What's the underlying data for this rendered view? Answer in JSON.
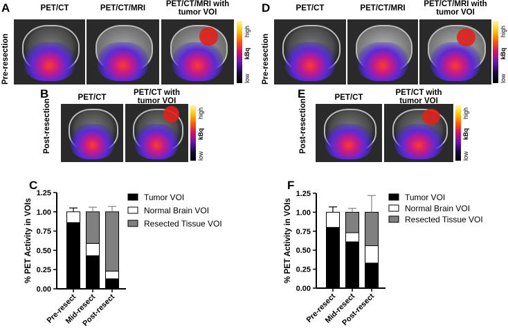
{
  "panels": {
    "A": {
      "letter": "A",
      "row_label": "Pre-resection",
      "titles": [
        "PET/CT",
        "PET/CT/MRI",
        "PET/CT/MRI with tumor VOI"
      ]
    },
    "B": {
      "letter": "B",
      "row_label": "Post-resection",
      "titles": [
        "PET/CT",
        "PET/CT with tumor VOI"
      ]
    },
    "D": {
      "letter": "D",
      "row_label": "Pre-resection",
      "titles": [
        "PET/CT",
        "PET/CT/MRI",
        "PET/CT/MRI with tumor VOI"
      ]
    },
    "E": {
      "letter": "E",
      "row_label": "Post-resection",
      "titles": [
        "PET/CT",
        "PET/CT with tumor VOI"
      ]
    }
  },
  "colorbar": {
    "high": "high",
    "unit": "kBq",
    "low": "low"
  },
  "chart_data": [
    {
      "panel": "C",
      "type": "bar",
      "stacked": true,
      "title": "",
      "ylabel": "% PET Activity in VOIs",
      "xlabel": "",
      "ylim": [
        0,
        1.25
      ],
      "yticks": [
        "0.00",
        "0.25",
        "0.50",
        "0.75",
        "1.00",
        "1.25"
      ],
      "categories": [
        "Pre-resect",
        "Mid-resect",
        "Post-resect"
      ],
      "series": [
        {
          "name": "Tumor VOI",
          "color": "#000000",
          "values": [
            0.86,
            0.43,
            0.13
          ],
          "errors": [
            0.05,
            0.06,
            0.04
          ]
        },
        {
          "name": "Normal Brain VOI",
          "color": "#ffffff",
          "values": [
            0.14,
            0.16,
            0.1
          ],
          "errors": [
            0.05,
            0.04,
            0.02
          ]
        },
        {
          "name": "Resected Tissue VOI",
          "color": "#808080",
          "values": [
            0,
            0.41,
            0.77
          ],
          "errors": [
            0,
            0.06,
            0.07
          ]
        }
      ],
      "legend": "top-right"
    },
    {
      "panel": "F",
      "type": "bar",
      "stacked": true,
      "title": "",
      "ylabel": "% PET Activity in VOIs",
      "xlabel": "",
      "ylim": [
        0,
        1.25
      ],
      "yticks": [
        "0.00",
        "0.25",
        "0.50",
        "0.75",
        "1.00",
        "1.25"
      ],
      "categories": [
        "Pre-resect",
        "Mid-resect",
        "Post-resect"
      ],
      "series": [
        {
          "name": "Tumor VOI",
          "color": "#000000",
          "values": [
            0.8,
            0.61,
            0.33
          ],
          "errors": [
            0.08,
            0.08,
            0.07
          ]
        },
        {
          "name": "Normal Brain VOI",
          "color": "#ffffff",
          "values": [
            0.2,
            0.12,
            0.23
          ],
          "errors": [
            0.07,
            0.04,
            0.15
          ]
        },
        {
          "name": "Resected Tissue VOI",
          "color": "#808080",
          "values": [
            0,
            0.27,
            0.44
          ],
          "errors": [
            0,
            0.05,
            0.22
          ]
        }
      ],
      "legend": "top-right"
    }
  ]
}
